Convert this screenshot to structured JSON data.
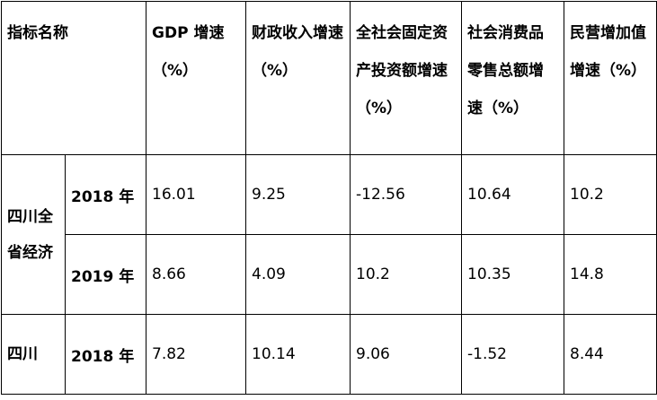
{
  "table": {
    "header": [
      "指标名称",
      "GDP 增速（%）",
      "财政收入增速（%）",
      "全社会固定资产投资额增速（%）",
      "社会消费品零售总额增速（%）",
      "民营增加值增速（%）"
    ],
    "groups": [
      {
        "region": "四川全省经济",
        "rows": [
          {
            "year": "2018 年",
            "values": [
              "16.01",
              "9.25",
              "-12.56",
              "10.64",
              "10.2"
            ]
          },
          {
            "year": "2019 年",
            "values": [
              "8.66",
              "4.09",
              "10.2",
              "10.35",
              "14.8"
            ]
          }
        ]
      },
      {
        "region": "四川",
        "rows": [
          {
            "year": "2018 年",
            "values": [
              "7.82",
              "10.14",
              "9.06",
              "-1.52",
              "8.44"
            ]
          }
        ]
      }
    ]
  }
}
